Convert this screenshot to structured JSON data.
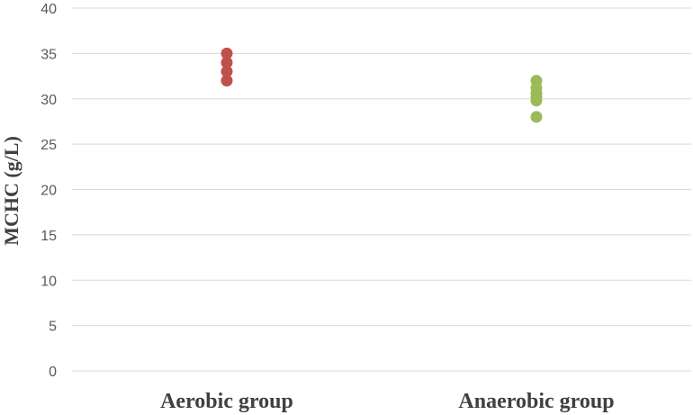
{
  "chart_data": {
    "type": "scatter",
    "title": "",
    "xlabel": "",
    "ylabel": "MCHC (g/L)",
    "categories": [
      "Aerobic group",
      "Anaerobic group"
    ],
    "ylim": [
      0,
      40
    ],
    "yticks": [
      0,
      5,
      10,
      15,
      20,
      25,
      30,
      35,
      40
    ],
    "grid": true,
    "legend": "none",
    "series": [
      {
        "category": "Aerobic group",
        "color": "#c0504d",
        "values": [
          35,
          34,
          33,
          32
        ]
      },
      {
        "category": "Anaerobic group",
        "color": "#9bbb59",
        "values": [
          32,
          31.2,
          30.6,
          30.2,
          29.8,
          28
        ]
      }
    ]
  }
}
